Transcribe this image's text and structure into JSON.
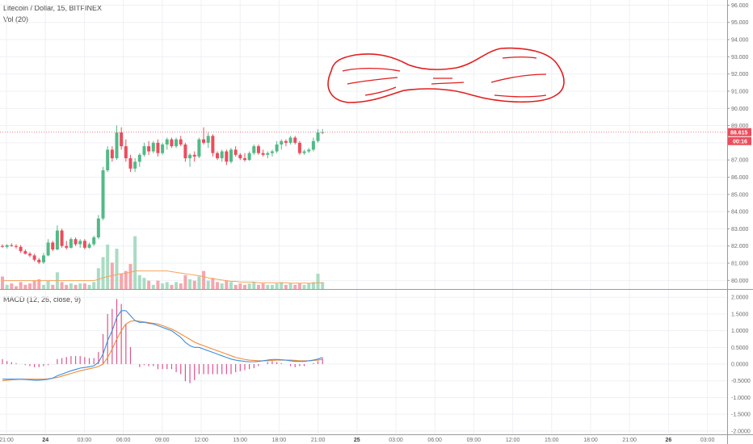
{
  "legend": {
    "title": "Litecoin / Dollar, 15, BITFINEX",
    "volume": "Vol (20)",
    "macd": "MACD (12, 26, close, 9)"
  },
  "colors": {
    "up": "#53b987",
    "down": "#eb4d5c",
    "vol_up": "#a9dcc3",
    "vol_down": "#f5a6ae",
    "vol_ma": "#f5a35c",
    "macd_line": "#3c8de0",
    "signal_line": "#f28c35",
    "hist_pos": "#d9568d",
    "hist_neg": "#e24f8e",
    "annotation": "#e31d1d",
    "last_price": "#eb4d5c"
  },
  "price_axis": {
    "ticks": [
      "96.000",
      "95.000",
      "94.000",
      "93.000",
      "92.000",
      "91.000",
      "90.000",
      "89.000",
      "88.000",
      "87.000",
      "86.000",
      "85.000",
      "84.000",
      "83.000",
      "82.000",
      "81.000",
      "80.000"
    ],
    "last_price": "88.615",
    "countdown": "00:16"
  },
  "macd_axis": {
    "ticks": [
      "2.0000",
      "1.5000",
      "1.0000",
      "0.5000",
      "0.0000",
      "-0.5000",
      "-1.0000",
      "-1.5000",
      "-2.0000"
    ]
  },
  "time_axis": {
    "ticks": [
      {
        "label": "21:00",
        "day": false
      },
      {
        "label": "24",
        "day": true
      },
      {
        "label": "03:00",
        "day": false
      },
      {
        "label": "06:00",
        "day": false
      },
      {
        "label": "09:00",
        "day": false
      },
      {
        "label": "12:00",
        "day": false
      },
      {
        "label": "15:00",
        "day": false
      },
      {
        "label": "18:00",
        "day": false
      },
      {
        "label": "21:00",
        "day": false
      },
      {
        "label": "25",
        "day": true
      },
      {
        "label": "03:00",
        "day": false
      },
      {
        "label": "06:00",
        "day": false
      },
      {
        "label": "09:00",
        "day": false
      },
      {
        "label": "12:00",
        "day": false
      },
      {
        "label": "15:00",
        "day": false
      },
      {
        "label": "18:00",
        "day": false
      },
      {
        "label": "21:00",
        "day": false
      },
      {
        "label": "26",
        "day": true
      },
      {
        "label": "03:00",
        "day": false
      }
    ]
  },
  "chart_data": [
    {
      "type": "candlestick",
      "title": "Litecoin / Dollar, 15, BITFINEX",
      "ylim": [
        79.5,
        96.3
      ],
      "grid": true,
      "candles": [
        {
          "o": 82.0,
          "h": 82.1,
          "l": 81.9,
          "c": 81.95
        },
        {
          "o": 81.95,
          "h": 82.1,
          "l": 81.85,
          "c": 82.05
        },
        {
          "o": 82.05,
          "h": 82.15,
          "l": 81.95,
          "c": 82.0
        },
        {
          "o": 82.0,
          "h": 82.1,
          "l": 81.85,
          "c": 81.95
        },
        {
          "o": 81.95,
          "h": 82.05,
          "l": 81.6,
          "c": 81.7
        },
        {
          "o": 81.7,
          "h": 81.8,
          "l": 81.5,
          "c": 81.55
        },
        {
          "o": 81.55,
          "h": 81.65,
          "l": 81.35,
          "c": 81.45
        },
        {
          "o": 81.45,
          "h": 81.55,
          "l": 81.1,
          "c": 81.2
        },
        {
          "o": 81.2,
          "h": 81.3,
          "l": 80.95,
          "c": 81.05
        },
        {
          "o": 81.05,
          "h": 81.6,
          "l": 80.95,
          "c": 81.45
        },
        {
          "o": 81.45,
          "h": 82.4,
          "l": 81.4,
          "c": 82.2
        },
        {
          "o": 82.2,
          "h": 82.3,
          "l": 81.7,
          "c": 81.8
        },
        {
          "o": 81.8,
          "h": 83.2,
          "l": 81.75,
          "c": 82.9
        },
        {
          "o": 82.9,
          "h": 83.0,
          "l": 81.9,
          "c": 82.0
        },
        {
          "o": 82.0,
          "h": 82.3,
          "l": 81.8,
          "c": 81.9
        },
        {
          "o": 81.9,
          "h": 82.5,
          "l": 81.85,
          "c": 82.4
        },
        {
          "o": 82.4,
          "h": 82.5,
          "l": 82.0,
          "c": 82.1
        },
        {
          "o": 82.1,
          "h": 82.4,
          "l": 81.9,
          "c": 82.3
        },
        {
          "o": 82.3,
          "h": 82.4,
          "l": 81.8,
          "c": 81.9
        },
        {
          "o": 81.9,
          "h": 82.2,
          "l": 81.85,
          "c": 82.1
        },
        {
          "o": 82.1,
          "h": 82.6,
          "l": 82.0,
          "c": 82.5
        },
        {
          "o": 82.5,
          "h": 83.8,
          "l": 82.4,
          "c": 83.6
        },
        {
          "o": 83.6,
          "h": 86.6,
          "l": 83.5,
          "c": 86.4
        },
        {
          "o": 86.4,
          "h": 87.8,
          "l": 86.3,
          "c": 87.6
        },
        {
          "o": 87.6,
          "h": 87.8,
          "l": 86.9,
          "c": 87.1
        },
        {
          "o": 87.1,
          "h": 89.0,
          "l": 87.0,
          "c": 88.6
        },
        {
          "o": 88.6,
          "h": 88.9,
          "l": 87.6,
          "c": 87.8
        },
        {
          "o": 87.8,
          "h": 88.2,
          "l": 86.9,
          "c": 87.1
        },
        {
          "o": 87.1,
          "h": 87.3,
          "l": 86.3,
          "c": 86.5
        },
        {
          "o": 86.5,
          "h": 87.1,
          "l": 86.3,
          "c": 86.9
        },
        {
          "o": 86.9,
          "h": 87.4,
          "l": 86.6,
          "c": 87.3
        },
        {
          "o": 87.3,
          "h": 88.0,
          "l": 87.2,
          "c": 87.8
        },
        {
          "o": 87.8,
          "h": 88.1,
          "l": 87.3,
          "c": 87.5
        },
        {
          "o": 87.5,
          "h": 88.1,
          "l": 87.4,
          "c": 88.0
        },
        {
          "o": 88.0,
          "h": 88.2,
          "l": 87.2,
          "c": 87.4
        },
        {
          "o": 87.4,
          "h": 88.0,
          "l": 87.3,
          "c": 87.9
        },
        {
          "o": 87.9,
          "h": 88.3,
          "l": 87.6,
          "c": 88.2
        },
        {
          "o": 88.2,
          "h": 88.3,
          "l": 87.7,
          "c": 87.8
        },
        {
          "o": 87.8,
          "h": 88.3,
          "l": 87.7,
          "c": 88.2
        },
        {
          "o": 88.2,
          "h": 88.4,
          "l": 87.8,
          "c": 87.9
        },
        {
          "o": 87.9,
          "h": 88.0,
          "l": 86.9,
          "c": 87.1
        },
        {
          "o": 87.1,
          "h": 87.4,
          "l": 86.6,
          "c": 87.3
        },
        {
          "o": 87.3,
          "h": 87.5,
          "l": 86.9,
          "c": 87.2
        },
        {
          "o": 87.2,
          "h": 88.3,
          "l": 87.1,
          "c": 88.2
        },
        {
          "o": 88.2,
          "h": 88.9,
          "l": 87.9,
          "c": 88.0
        },
        {
          "o": 88.0,
          "h": 88.6,
          "l": 87.7,
          "c": 88.4
        },
        {
          "o": 88.4,
          "h": 88.5,
          "l": 87.2,
          "c": 87.4
        },
        {
          "o": 87.4,
          "h": 87.5,
          "l": 87.0,
          "c": 87.1
        },
        {
          "o": 87.1,
          "h": 87.6,
          "l": 86.9,
          "c": 87.5
        },
        {
          "o": 87.5,
          "h": 87.6,
          "l": 86.7,
          "c": 86.9
        },
        {
          "o": 86.9,
          "h": 87.7,
          "l": 86.8,
          "c": 87.6
        },
        {
          "o": 87.6,
          "h": 87.8,
          "l": 87.2,
          "c": 87.3
        },
        {
          "o": 87.3,
          "h": 87.4,
          "l": 87.0,
          "c": 87.1
        },
        {
          "o": 87.1,
          "h": 87.4,
          "l": 86.9,
          "c": 87.0
        },
        {
          "o": 87.0,
          "h": 87.5,
          "l": 86.95,
          "c": 87.4
        },
        {
          "o": 87.4,
          "h": 87.9,
          "l": 87.3,
          "c": 87.8
        },
        {
          "o": 87.8,
          "h": 87.9,
          "l": 87.3,
          "c": 87.4
        },
        {
          "o": 87.4,
          "h": 87.6,
          "l": 87.2,
          "c": 87.3
        },
        {
          "o": 87.3,
          "h": 87.5,
          "l": 87.1,
          "c": 87.4
        },
        {
          "o": 87.4,
          "h": 87.6,
          "l": 87.2,
          "c": 87.5
        },
        {
          "o": 87.5,
          "h": 88.1,
          "l": 87.4,
          "c": 87.9
        },
        {
          "o": 87.9,
          "h": 88.2,
          "l": 87.6,
          "c": 88.1
        },
        {
          "o": 88.1,
          "h": 88.2,
          "l": 87.8,
          "c": 88.0
        },
        {
          "o": 88.0,
          "h": 88.4,
          "l": 87.9,
          "c": 88.3
        },
        {
          "o": 88.3,
          "h": 88.4,
          "l": 87.9,
          "c": 88.0
        },
        {
          "o": 88.0,
          "h": 88.1,
          "l": 87.3,
          "c": 87.4
        },
        {
          "o": 87.4,
          "h": 87.6,
          "l": 87.3,
          "c": 87.5
        },
        {
          "o": 87.5,
          "h": 87.7,
          "l": 87.4,
          "c": 87.6
        },
        {
          "o": 87.6,
          "h": 88.3,
          "l": 87.5,
          "c": 88.1
        },
        {
          "o": 88.1,
          "h": 88.8,
          "l": 88.0,
          "c": 88.6
        },
        {
          "o": 88.6,
          "h": 88.8,
          "l": 88.5,
          "c": 88.615
        }
      ]
    },
    {
      "type": "bar",
      "title": "Vol (20)",
      "values": [
        0.9,
        0.3,
        0.4,
        0.2,
        0.5,
        0.3,
        0.4,
        0.6,
        0.7,
        0.3,
        0.6,
        0.3,
        1.2,
        0.5,
        0.3,
        0.4,
        0.3,
        0.4,
        0.4,
        0.3,
        0.5,
        1.5,
        2.3,
        3.2,
        1.9,
        2.9,
        1.1,
        1.3,
        1.8,
        3.8,
        1.0,
        0.8,
        0.6,
        0.3,
        0.6,
        0.4,
        0.5,
        0.3,
        0.5,
        0.4,
        1.0,
        0.7,
        0.6,
        0.9,
        1.3,
        0.6,
        0.8,
        0.5,
        0.4,
        0.6,
        0.5,
        0.3,
        0.4,
        0.3,
        0.4,
        0.5,
        0.3,
        0.4,
        0.3,
        0.3,
        0.4,
        0.5,
        0.3,
        0.4,
        0.3,
        0.4,
        0.3,
        0.4,
        0.5,
        1.1,
        0.5
      ],
      "ma": [
        0.6,
        0.6,
        0.6,
        0.6,
        0.6,
        0.6,
        0.6,
        0.6,
        0.6,
        0.6,
        0.6,
        0.6,
        0.6,
        0.6,
        0.6,
        0.6,
        0.6,
        0.6,
        0.6,
        0.6,
        0.6,
        0.7,
        0.8,
        0.9,
        0.95,
        1.05,
        1.1,
        1.15,
        1.2,
        1.3,
        1.3,
        1.3,
        1.3,
        1.3,
        1.3,
        1.3,
        1.3,
        1.25,
        1.2,
        1.15,
        1.1,
        1.05,
        1.0,
        0.95,
        0.9,
        0.8,
        0.75,
        0.7,
        0.65,
        0.6,
        0.55,
        0.55,
        0.5,
        0.5,
        0.5,
        0.5,
        0.45,
        0.45,
        0.45,
        0.45,
        0.45,
        0.45,
        0.45,
        0.42,
        0.42,
        0.42,
        0.42,
        0.42,
        0.42,
        0.45,
        0.45
      ],
      "ylim": [
        0,
        10
      ]
    },
    {
      "type": "line",
      "title": "MACD (12, 26, close, 9)",
      "ylim": [
        -2.1,
        2.15
      ],
      "series": [
        {
          "name": "MACD",
          "values": [
            -0.45,
            -0.45,
            -0.45,
            -0.45,
            -0.45,
            -0.46,
            -0.47,
            -0.48,
            -0.48,
            -0.47,
            -0.45,
            -0.42,
            -0.35,
            -0.3,
            -0.25,
            -0.2,
            -0.16,
            -0.12,
            -0.1,
            -0.08,
            -0.05,
            0.05,
            0.3,
            0.7,
            1.0,
            1.4,
            1.6,
            1.6,
            1.45,
            1.3,
            1.25,
            1.25,
            1.22,
            1.2,
            1.15,
            1.1,
            1.05,
            1.0,
            0.9,
            0.8,
            0.65,
            0.55,
            0.5,
            0.5,
            0.45,
            0.4,
            0.35,
            0.3,
            0.25,
            0.2,
            0.15,
            0.12,
            0.1,
            0.08,
            0.07,
            0.07,
            0.08,
            0.1,
            0.12,
            0.14,
            0.14,
            0.13,
            0.12,
            0.1,
            0.08,
            0.08,
            0.08,
            0.1,
            0.12,
            0.15,
            0.2
          ]
        },
        {
          "name": "Signal",
          "values": [
            -0.5,
            -0.48,
            -0.47,
            -0.46,
            -0.45,
            -0.45,
            -0.45,
            -0.45,
            -0.45,
            -0.45,
            -0.44,
            -0.42,
            -0.4,
            -0.36,
            -0.32,
            -0.28,
            -0.24,
            -0.2,
            -0.17,
            -0.14,
            -0.11,
            -0.07,
            0.0,
            0.2,
            0.45,
            0.75,
            1.0,
            1.2,
            1.28,
            1.3,
            1.28,
            1.26,
            1.24,
            1.22,
            1.2,
            1.15,
            1.1,
            1.05,
            0.98,
            0.9,
            0.82,
            0.74,
            0.66,
            0.6,
            0.55,
            0.5,
            0.45,
            0.4,
            0.35,
            0.3,
            0.25,
            0.2,
            0.17,
            0.14,
            0.12,
            0.11,
            0.1,
            0.1,
            0.1,
            0.11,
            0.12,
            0.12,
            0.12,
            0.12,
            0.11,
            0.1,
            0.1,
            0.1,
            0.11,
            0.12,
            0.14
          ]
        }
      ]
    }
  ]
}
